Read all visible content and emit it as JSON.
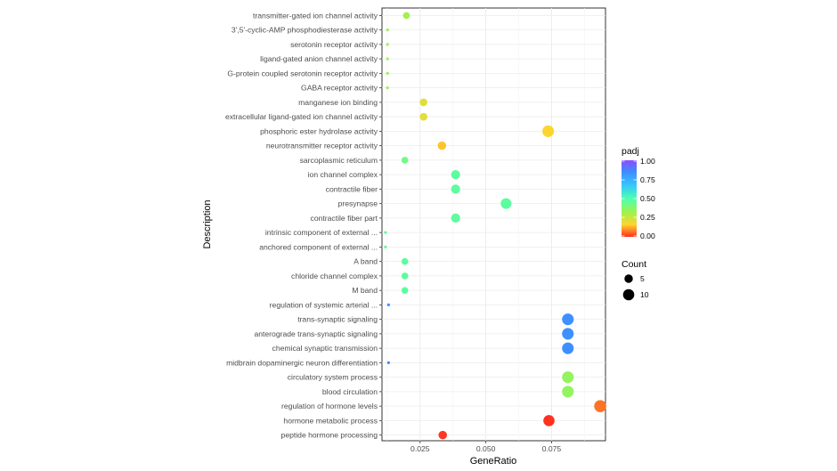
{
  "chart_data": {
    "type": "scatter",
    "xlabel": "GeneRatio",
    "ylabel": "Description",
    "xlim": [
      0.0105,
      0.0955
    ],
    "xticks": [
      "0.025",
      "0.050",
      "0.075"
    ],
    "xtick_values": [
      0.025,
      0.05,
      0.075
    ],
    "grid": true,
    "points": [
      {
        "label": "transmitter-gated ion channel activity",
        "x": 0.0198,
        "count": 3,
        "padj": 0.33
      },
      {
        "label": "3',5'-cyclic-AMP phosphodiesterase activity",
        "x": 0.0126,
        "count": 1,
        "padj": 0.35
      },
      {
        "label": "serotonin receptor activity",
        "x": 0.0126,
        "count": 1,
        "padj": 0.35
      },
      {
        "label": "ligand-gated anion channel activity",
        "x": 0.0126,
        "count": 1,
        "padj": 0.35
      },
      {
        "label": "G-protein coupled serotonin receptor activity",
        "x": 0.0126,
        "count": 1,
        "padj": 0.35
      },
      {
        "label": "GABA receptor activity",
        "x": 0.0126,
        "count": 1,
        "padj": 0.35
      },
      {
        "label": "manganese ion binding",
        "x": 0.0263,
        "count": 4,
        "padj": 0.22
      },
      {
        "label": "extracellular ligand-gated ion channel activity",
        "x": 0.0263,
        "count": 4,
        "padj": 0.22
      },
      {
        "label": "phosphoric ester hydrolase activity",
        "x": 0.0737,
        "count": 11,
        "padj": 0.17
      },
      {
        "label": "neurotransmitter receptor activity",
        "x": 0.0333,
        "count": 5,
        "padj": 0.15
      },
      {
        "label": "sarcoplasmic reticulum",
        "x": 0.0192,
        "count": 3,
        "padj": 0.43
      },
      {
        "label": "ion channel complex",
        "x": 0.0385,
        "count": 6,
        "padj": 0.47
      },
      {
        "label": "contractile fiber",
        "x": 0.0385,
        "count": 6,
        "padj": 0.47
      },
      {
        "label": "presynapse",
        "x": 0.0577,
        "count": 9,
        "padj": 0.47
      },
      {
        "label": "contractile fiber part",
        "x": 0.0385,
        "count": 6,
        "padj": 0.47
      },
      {
        "label": "intrinsic component of external ...",
        "x": 0.0118,
        "count": 1,
        "padj": 0.45
      },
      {
        "label": "anchored component of external ...",
        "x": 0.0118,
        "count": 1,
        "padj": 0.45
      },
      {
        "label": "A band",
        "x": 0.0192,
        "count": 3,
        "padj": 0.47
      },
      {
        "label": "chloride channel complex",
        "x": 0.0192,
        "count": 3,
        "padj": 0.47
      },
      {
        "label": "M band",
        "x": 0.0192,
        "count": 3,
        "padj": 0.47
      },
      {
        "label": "regulation of systemic arterial ...",
        "x": 0.013,
        "count": 1,
        "padj": 0.82
      },
      {
        "label": "trans-synaptic signaling",
        "x": 0.0812,
        "count": 11,
        "padj": 0.82
      },
      {
        "label": "anterograde trans-synaptic signaling",
        "x": 0.0812,
        "count": 11,
        "padj": 0.82
      },
      {
        "label": "chemical synaptic transmission",
        "x": 0.0812,
        "count": 11,
        "padj": 0.82
      },
      {
        "label": "midbrain dopaminergic neuron differentiation",
        "x": 0.013,
        "count": 1,
        "padj": 0.82
      },
      {
        "label": "circulatory system process",
        "x": 0.0812,
        "count": 11,
        "padj": 0.36
      },
      {
        "label": "blood circulation",
        "x": 0.0812,
        "count": 11,
        "padj": 0.36
      },
      {
        "label": "regulation of hormone levels",
        "x": 0.0935,
        "count": 12,
        "padj": 0.07
      },
      {
        "label": "hormone metabolic process",
        "x": 0.074,
        "count": 10,
        "padj": 0.005
      },
      {
        "label": "peptide hormone processing",
        "x": 0.0336,
        "count": 5,
        "padj": 0.01
      }
    ],
    "legend_padj": {
      "title": "padj",
      "ticks": [
        "1.00",
        "0.75",
        "0.50",
        "0.25",
        "0.00"
      ],
      "tick_values": [
        1.0,
        0.75,
        0.5,
        0.25,
        0.0
      ],
      "colors_top_to_bottom": [
        "#8a4dff",
        "#3f8cff",
        "#36c4ff",
        "#4dffb0",
        "#a0f24d",
        "#ffd42e",
        "#ff2d1f"
      ],
      "placement": "right"
    },
    "legend_count": {
      "title": "Count",
      "entries": [
        {
          "label": "5",
          "value": 5
        },
        {
          "label": "10",
          "value": 10
        }
      ],
      "placement": "right"
    },
    "point_color": "#000000"
  }
}
